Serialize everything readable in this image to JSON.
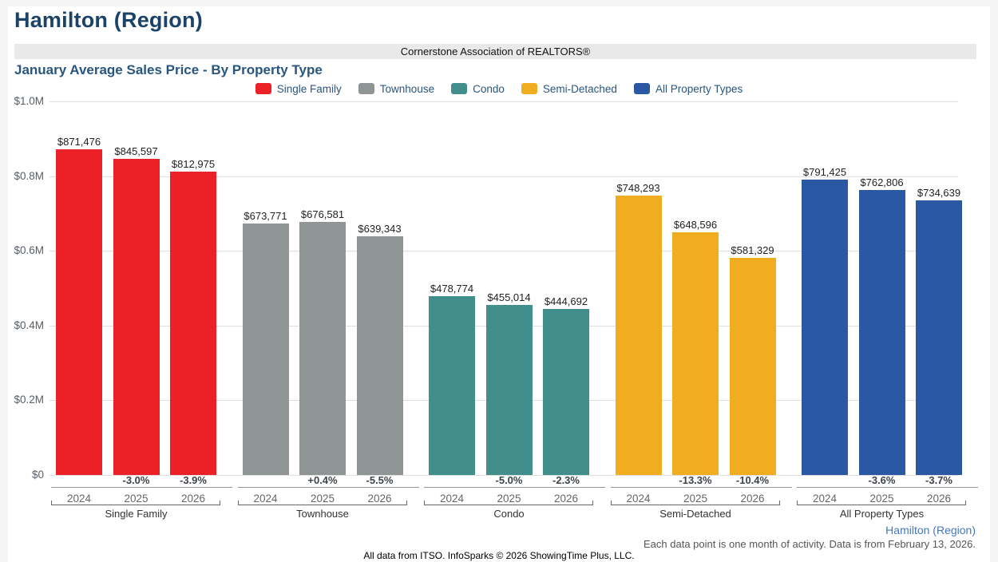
{
  "page": {
    "title": "Hamilton (Region)",
    "banner": "Cornerstone Association of REALTORS®",
    "footer_region": "Hamilton (Region)",
    "footer_note": "Each data point is one month of activity. Data is from February 13, 2026.",
    "footer_credit": "All data from ITSO. InfoSparks © 2026 ShowingTime Plus, LLC."
  },
  "colors": {
    "header_navy": "#1b4367",
    "chart_title_blue": "#28567f",
    "footer_link_blue": "#4677b8",
    "banner_background": "#e9e9e9",
    "single_family_red": "#ec2127",
    "townhouse_gray": "#8f9494",
    "condo_teal": "#418e8c",
    "semi_detached_yellow": "#efad1f",
    "all_property_types_blue": "#2a58a3"
  },
  "chart_data": {
    "type": "bar",
    "title": "January Average Sales Price - By Property Type",
    "xlabel": "",
    "ylabel": "",
    "ylim": [
      0,
      1000000
    ],
    "grid": true,
    "legend_position": "top",
    "y_ticks": [
      {
        "value": 0,
        "label": "$0"
      },
      {
        "value": 200000,
        "label": "$0.2M"
      },
      {
        "value": 400000,
        "label": "$0.4M"
      },
      {
        "value": 600000,
        "label": "$0.6M"
      },
      {
        "value": 800000,
        "label": "$0.8M"
      },
      {
        "value": 1000000,
        "label": "$1.0M"
      }
    ],
    "categories": [
      "2024",
      "2025",
      "2026"
    ],
    "series": [
      {
        "name": "Single Family",
        "color": "#ec2127",
        "values": [
          871476,
          845597,
          812975
        ],
        "value_labels": [
          "$871,476",
          "$845,597",
          "$812,975"
        ],
        "pct_change": [
          "",
          "-3.0%",
          "-3.9%"
        ]
      },
      {
        "name": "Townhouse",
        "color": "#8f9494",
        "values": [
          673771,
          676581,
          639343
        ],
        "value_labels": [
          "$673,771",
          "$676,581",
          "$639,343"
        ],
        "pct_change": [
          "",
          "+0.4%",
          "-5.5%"
        ]
      },
      {
        "name": "Condo",
        "color": "#418e8c",
        "values": [
          478774,
          455014,
          444692
        ],
        "value_labels": [
          "$478,774",
          "$455,014",
          "$444,692"
        ],
        "pct_change": [
          "",
          "-5.0%",
          "-2.3%"
        ]
      },
      {
        "name": "Semi-Detached",
        "color": "#efad1f",
        "values": [
          748293,
          648596,
          581329
        ],
        "value_labels": [
          "$748,293",
          "$648,596",
          "$581,329"
        ],
        "pct_change": [
          "",
          "-13.3%",
          "-10.4%"
        ]
      },
      {
        "name": "All Property Types",
        "color": "#2a58a3",
        "values": [
          791425,
          762806,
          734639
        ],
        "value_labels": [
          "$791,425",
          "$762,806",
          "$734,639"
        ],
        "pct_change": [
          "",
          "-3.6%",
          "-3.7%"
        ]
      }
    ]
  }
}
